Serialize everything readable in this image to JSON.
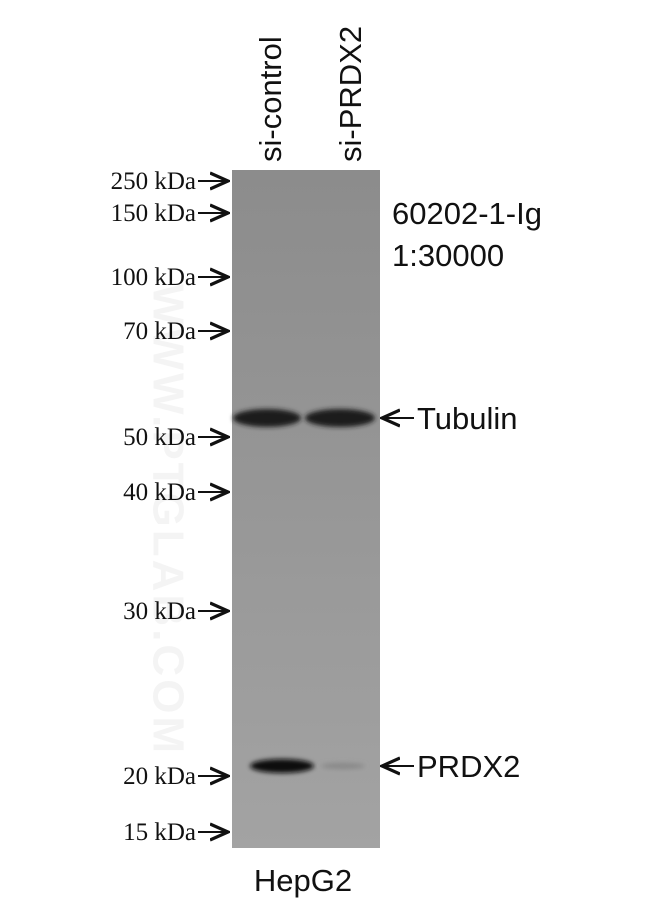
{
  "lanes": [
    "si-control",
    "si-PRDX2"
  ],
  "markers": [
    "250 kDa",
    "150 kDa",
    "100 kDa",
    "70 kDa",
    "50 kDa",
    "40 kDa",
    "30 kDa",
    "20 kDa",
    "15 kDa"
  ],
  "antibody": {
    "catalog": "60202-1-Ig",
    "dilution": "1:30000"
  },
  "bands": [
    "Tubulin",
    "PRDX2"
  ],
  "cell_line": "HepG2",
  "watermark": "WWW.PTGLAB.COM"
}
